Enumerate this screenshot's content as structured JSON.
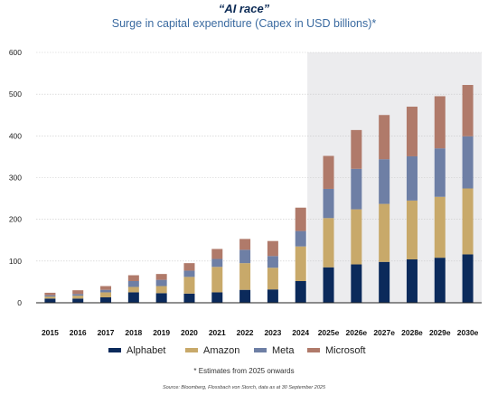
{
  "chart_data": {
    "type": "bar",
    "stacked": true,
    "title": "“AI race”",
    "subtitle": "Surge in capital expenditure (Capex in USD billions)*",
    "categories": [
      "2015",
      "2016",
      "2017",
      "2018",
      "2019",
      "2020",
      "2021",
      "2022",
      "2023",
      "2024",
      "2025e",
      "2026e",
      "2027e",
      "2028e",
      "2029e",
      "2030e"
    ],
    "ylim": [
      0,
      600
    ],
    "yticks": [
      "0",
      "100",
      "200",
      "300",
      "400",
      "500",
      "600"
    ],
    "grid": true,
    "legend_position": "bottom",
    "estimate_region_start": "2025e",
    "series": [
      {
        "name": "Alphabet",
        "color": "#0b2a5b",
        "values": [
          10,
          10,
          13,
          25,
          23,
          22,
          25,
          31,
          32,
          52,
          85,
          92,
          98,
          104,
          108,
          116
        ]
      },
      {
        "name": "Amazon",
        "color": "#c8a96a",
        "values": [
          5,
          7,
          12,
          13,
          17,
          40,
          61,
          64,
          52,
          83,
          118,
          132,
          139,
          141,
          146,
          158
        ]
      },
      {
        "name": "Meta",
        "color": "#6e7fa5",
        "values": [
          3,
          4,
          6,
          14,
          15,
          15,
          19,
          32,
          28,
          37,
          70,
          97,
          107,
          106,
          116,
          125
        ]
      },
      {
        "name": "Microsoft",
        "color": "#b07a6a",
        "values": [
          6,
          9,
          9,
          14,
          14,
          18,
          24,
          26,
          36,
          56,
          79,
          93,
          106,
          119,
          125,
          123
        ]
      }
    ],
    "footnote": "* Estimates from 2025 onwards",
    "source": "Source: Bloomberg, Flossbach von Storch, data as at 30 September 2025"
  }
}
